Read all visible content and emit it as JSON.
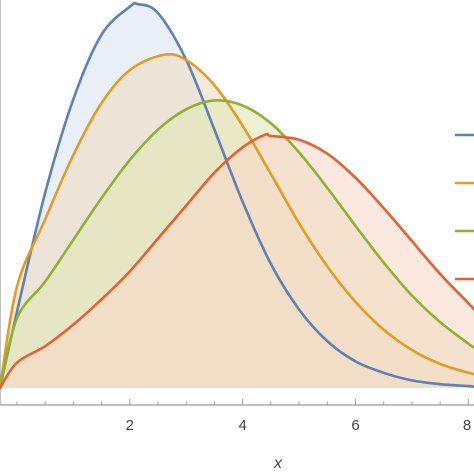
{
  "chart_data": {
    "type": "area",
    "title": "",
    "xlabel": "x",
    "ylabel": "",
    "xlim": [
      -0.3,
      8.1
    ],
    "ylim": [
      0,
      0.3
    ],
    "x_ticks": [
      2,
      4,
      6,
      8
    ],
    "x_tick_labels": [
      "2",
      "4",
      "6",
      "8"
    ],
    "grid": false,
    "legend": "right",
    "series": [
      {
        "color": "#5E81B5",
        "fill": "#d8e4f2",
        "x": [
          -0.3,
          0,
          0.5,
          1,
          1.5,
          2,
          2.15,
          2.5,
          3,
          3.5,
          4,
          4.5,
          5,
          5.5,
          6,
          6.5,
          7,
          7.5,
          8,
          8.1
        ],
        "y": [
          0.0,
          0.06,
          0.154,
          0.228,
          0.279,
          0.301,
          0.303,
          0.296,
          0.259,
          0.204,
          0.147,
          0.098,
          0.062,
          0.037,
          0.021,
          0.012,
          0.006,
          0.003,
          0.0015,
          0.001
        ]
      },
      {
        "color": "#E19C24",
        "fill": "#eedcc0",
        "x": [
          -0.3,
          0,
          0.5,
          1,
          1.5,
          2,
          2.6,
          3,
          3.5,
          4,
          4.5,
          5,
          5.5,
          6,
          6.5,
          7,
          7.5,
          8,
          8.1
        ],
        "y": [
          0.0,
          0.08,
          0.133,
          0.184,
          0.225,
          0.251,
          0.263,
          0.259,
          0.239,
          0.207,
          0.169,
          0.13,
          0.096,
          0.068,
          0.046,
          0.03,
          0.019,
          0.012,
          0.011
        ]
      },
      {
        "color": "#8FB032",
        "fill": "#e2e6b8",
        "x": [
          -0.3,
          0,
          0.5,
          1,
          1.5,
          2,
          2.5,
          3,
          3.5,
          4,
          4.5,
          5,
          5.5,
          6,
          6.5,
          7,
          7.5,
          8,
          8.1
        ],
        "y": [
          0.0,
          0.055,
          0.084,
          0.117,
          0.15,
          0.18,
          0.204,
          0.22,
          0.227,
          0.223,
          0.209,
          0.186,
          0.158,
          0.128,
          0.099,
          0.073,
          0.052,
          0.035,
          0.032
        ]
      },
      {
        "color": "#E66033",
        "fill": "#f9d8c9",
        "x": [
          -0.3,
          0,
          0.5,
          1,
          1.5,
          2,
          2.5,
          3,
          3.5,
          4,
          4.4,
          4.5,
          5,
          5.5,
          6,
          6.5,
          7,
          7.5,
          8,
          8.1
        ],
        "y": [
          0.0,
          0.02,
          0.033,
          0.05,
          0.07,
          0.092,
          0.118,
          0.144,
          0.17,
          0.19,
          0.2,
          0.199,
          0.196,
          0.185,
          0.166,
          0.142,
          0.116,
          0.09,
          0.067,
          0.062
        ]
      }
    ]
  }
}
